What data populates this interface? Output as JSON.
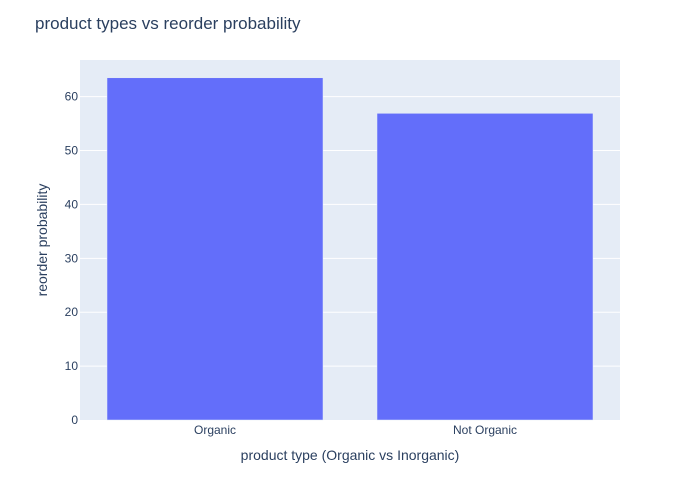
{
  "chart_data": {
    "type": "bar",
    "title": "product types vs reorder probability",
    "categories": [
      "Organic",
      "Not Organic"
    ],
    "values": [
      63.5,
      56.9
    ],
    "xlabel": "product type (Organic vs Inorganic)",
    "ylabel": "reorder probability",
    "ylim": [
      0,
      66.8
    ],
    "yticks": [
      0,
      10,
      20,
      30,
      40,
      50,
      60
    ],
    "grid": true,
    "legend": "none",
    "colors": {
      "bar": "#636efa",
      "plot_background": "#e5ecf6",
      "gridline": "#ffffff",
      "text": "#2a3f5f"
    }
  }
}
